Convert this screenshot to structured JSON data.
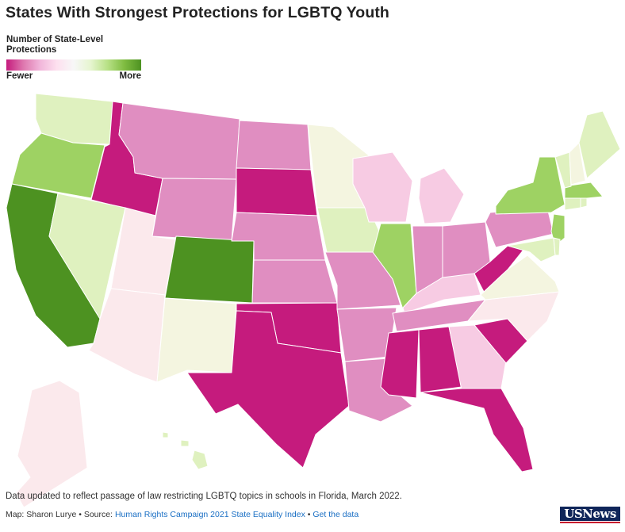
{
  "title": "States With Strongest Protections for LGBTQ Youth",
  "legend": {
    "title": "Number of State-Level Protections",
    "low_label": "Fewer",
    "high_label": "More",
    "colors": [
      "#c51b7d",
      "#de77ae",
      "#f1b6da",
      "#fde0ef",
      "#f7f7f7",
      "#e6f5d0",
      "#b8e186",
      "#7fbc41",
      "#4d9221"
    ]
  },
  "palette": {
    "level_1": "#c51b7d",
    "level_2": "#e08ec1",
    "level_3": "#f7cbe3",
    "level_4": "#fbe9ec",
    "level_5": "#f4f5e0",
    "level_6": "#dff1bf",
    "level_7": "#9ed263",
    "level_8": "#4d9221"
  },
  "states": [
    {
      "code": "WA",
      "level": 6
    },
    {
      "code": "OR",
      "level": 7
    },
    {
      "code": "CA",
      "level": 8
    },
    {
      "code": "ID",
      "level": 1
    },
    {
      "code": "NV",
      "level": 6
    },
    {
      "code": "UT",
      "level": 4
    },
    {
      "code": "AZ",
      "level": 4
    },
    {
      "code": "MT",
      "level": 2
    },
    {
      "code": "WY",
      "level": 2
    },
    {
      "code": "CO",
      "level": 8
    },
    {
      "code": "NM",
      "level": 5
    },
    {
      "code": "ND",
      "level": 2
    },
    {
      "code": "SD",
      "level": 1
    },
    {
      "code": "NE",
      "level": 2
    },
    {
      "code": "KS",
      "level": 2
    },
    {
      "code": "OK",
      "level": 1
    },
    {
      "code": "TX",
      "level": 1
    },
    {
      "code": "MN",
      "level": 5
    },
    {
      "code": "IA",
      "level": 6
    },
    {
      "code": "MO",
      "level": 2
    },
    {
      "code": "AR",
      "level": 2
    },
    {
      "code": "LA",
      "level": 2
    },
    {
      "code": "WI",
      "level": 3
    },
    {
      "code": "IL",
      "level": 7
    },
    {
      "code": "MI",
      "level": 3
    },
    {
      "code": "IN",
      "level": 2
    },
    {
      "code": "OH",
      "level": 2
    },
    {
      "code": "KY",
      "level": 3
    },
    {
      "code": "TN",
      "level": 2
    },
    {
      "code": "MS",
      "level": 1
    },
    {
      "code": "AL",
      "level": 1
    },
    {
      "code": "GA",
      "level": 3
    },
    {
      "code": "FL",
      "level": 1
    },
    {
      "code": "SC",
      "level": 1
    },
    {
      "code": "NC",
      "level": 4
    },
    {
      "code": "VA",
      "level": 5
    },
    {
      "code": "WV",
      "level": 1
    },
    {
      "code": "PA",
      "level": 2
    },
    {
      "code": "NY",
      "level": 7
    },
    {
      "code": "NJ",
      "level": 7
    },
    {
      "code": "MD",
      "level": 6
    },
    {
      "code": "DE",
      "level": 6
    },
    {
      "code": "CT",
      "level": 6
    },
    {
      "code": "RI",
      "level": 6
    },
    {
      "code": "MA",
      "level": 7
    },
    {
      "code": "VT",
      "level": 6
    },
    {
      "code": "NH",
      "level": 5
    },
    {
      "code": "ME",
      "level": 6
    },
    {
      "code": "AK",
      "level": 4
    },
    {
      "code": "HI",
      "level": 6
    }
  ],
  "note": "Data updated to reflect passage of law restricting LGBTQ topics in schools in Florida, March 2022.",
  "credits": {
    "byline": "Map: Sharon Lurye",
    "separator": "•",
    "source_prefix": "Source:",
    "source_link": "Human Rights Campaign 2021 State Equality Index",
    "data_link": "Get the data"
  },
  "logo_text": "USNews"
}
